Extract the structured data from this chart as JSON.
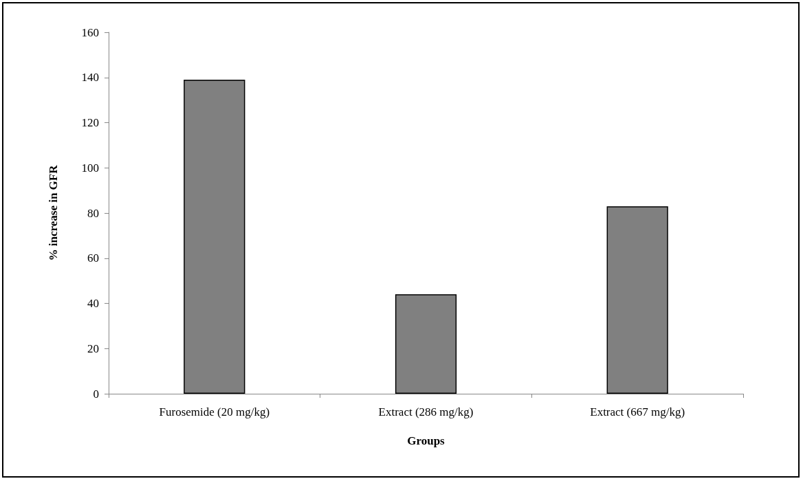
{
  "chart_data": {
    "type": "bar",
    "xlabel": "Groups",
    "ylabel": "% increase in GFR",
    "categories": [
      "Furosemide (20 mg/kg)",
      "Extract (286 mg/kg)",
      "Extract (667 mg/kg)"
    ],
    "values": [
      139,
      44,
      83
    ],
    "color": "#808080",
    "ylim": [
      0,
      160
    ],
    "yticks": [
      0,
      20,
      40,
      60,
      80,
      100,
      120,
      140,
      160
    ],
    "grid": false
  }
}
